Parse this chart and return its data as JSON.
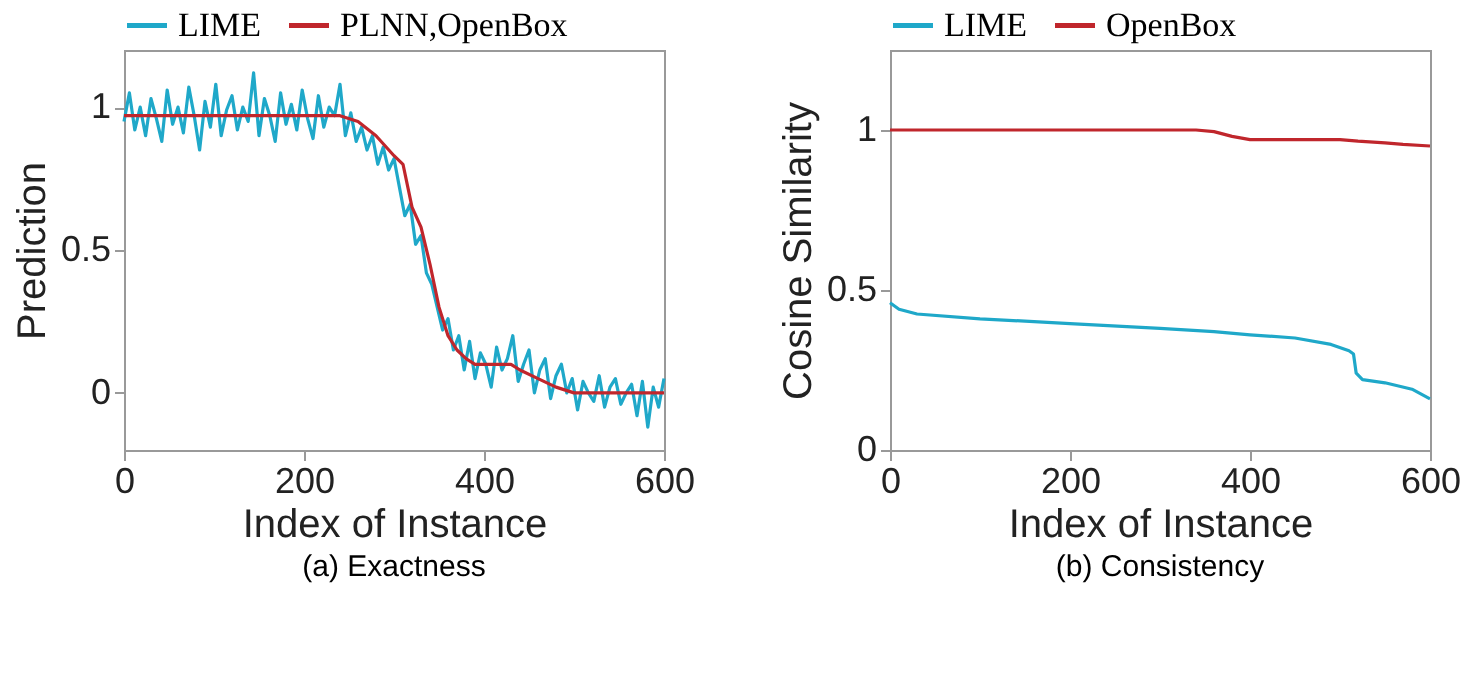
{
  "chart_data": [
    {
      "type": "line",
      "title": "(a) Exactness",
      "xlabel": "Index of Instance",
      "ylabel": "Prediction",
      "xlim": [
        0,
        600
      ],
      "xticks": [
        0,
        200,
        400,
        600
      ],
      "ylim": [
        -0.2,
        1.2
      ],
      "yticks": [
        0,
        0.5,
        1
      ],
      "grid": false,
      "legend": "top",
      "series": [
        {
          "name": "LIME",
          "color": "#1fa8c9",
          "x": [
            0,
            6,
            12,
            18,
            24,
            30,
            36,
            42,
            48,
            54,
            60,
            66,
            72,
            78,
            84,
            90,
            96,
            102,
            108,
            114,
            120,
            126,
            132,
            138,
            144,
            150,
            156,
            162,
            168,
            174,
            180,
            186,
            192,
            198,
            204,
            210,
            216,
            222,
            228,
            234,
            240,
            246,
            252,
            258,
            264,
            270,
            276,
            282,
            288,
            294,
            300,
            306,
            312,
            318,
            324,
            330,
            336,
            342,
            348,
            354,
            360,
            366,
            372,
            378,
            384,
            390,
            396,
            402,
            408,
            414,
            420,
            426,
            432,
            438,
            444,
            450,
            456,
            462,
            468,
            474,
            480,
            486,
            492,
            498,
            504,
            510,
            516,
            522,
            528,
            534,
            540,
            546,
            552,
            558,
            564,
            570,
            576,
            582,
            588,
            594,
            600
          ],
          "values": [
            0.95,
            1.05,
            0.92,
            1.0,
            0.9,
            1.03,
            0.96,
            0.88,
            1.06,
            0.94,
            1.0,
            0.91,
            1.07,
            0.97,
            0.85,
            1.02,
            0.93,
            1.08,
            0.9,
            0.99,
            1.04,
            0.92,
            1.0,
            0.95,
            1.12,
            0.9,
            1.03,
            0.97,
            0.88,
            1.05,
            0.94,
            1.01,
            0.92,
            1.06,
            0.96,
            0.89,
            1.04,
            0.93,
            1.0,
            0.97,
            1.08,
            0.9,
            0.98,
            0.88,
            0.93,
            0.85,
            0.9,
            0.8,
            0.86,
            0.78,
            0.82,
            0.72,
            0.62,
            0.66,
            0.52,
            0.55,
            0.42,
            0.38,
            0.3,
            0.22,
            0.26,
            0.15,
            0.2,
            0.08,
            0.18,
            0.05,
            0.14,
            0.1,
            0.02,
            0.16,
            0.08,
            0.12,
            0.2,
            0.04,
            0.1,
            0.15,
            0.0,
            0.08,
            0.12,
            -0.02,
            0.06,
            0.1,
            0.0,
            0.05,
            -0.06,
            0.04,
            0.0,
            -0.03,
            0.06,
            -0.05,
            0.02,
            0.05,
            -0.04,
            0.0,
            0.03,
            -0.08,
            0.04,
            -0.12,
            0.02,
            -0.05,
            0.05
          ]
        },
        {
          "name": "PLNN,OpenBox",
          "color": "#c0262c",
          "x": [
            0,
            240,
            260,
            280,
            300,
            310,
            320,
            330,
            340,
            350,
            360,
            370,
            380,
            390,
            430,
            440,
            460,
            480,
            500,
            600
          ],
          "values": [
            0.97,
            0.97,
            0.95,
            0.9,
            0.83,
            0.8,
            0.65,
            0.58,
            0.45,
            0.3,
            0.2,
            0.15,
            0.12,
            0.1,
            0.1,
            0.08,
            0.05,
            0.02,
            0,
            0
          ]
        }
      ]
    },
    {
      "type": "line",
      "title": "(b) Consistency",
      "xlabel": "Index of Instance",
      "ylabel": "Cosine Similarity",
      "xlim": [
        0,
        600
      ],
      "xticks": [
        0,
        200,
        400,
        600
      ],
      "ylim": [
        0,
        1.25
      ],
      "yticks": [
        0,
        0.5,
        1
      ],
      "grid": false,
      "legend": "top",
      "series": [
        {
          "name": "LIME",
          "color": "#1fa8c9",
          "x": [
            0,
            10,
            30,
            100,
            200,
            300,
            360,
            400,
            450,
            490,
            510,
            515,
            518,
            525,
            550,
            580,
            600
          ],
          "values": [
            0.46,
            0.44,
            0.425,
            0.41,
            0.395,
            0.38,
            0.37,
            0.36,
            0.35,
            0.33,
            0.31,
            0.3,
            0.24,
            0.22,
            0.21,
            0.19,
            0.16
          ]
        },
        {
          "name": "OpenBox",
          "color": "#c0262c",
          "x": [
            0,
            340,
            360,
            380,
            400,
            500,
            520,
            550,
            570,
            600
          ],
          "values": [
            1.0,
            1.0,
            0.995,
            0.98,
            0.97,
            0.97,
            0.965,
            0.96,
            0.955,
            0.95
          ]
        }
      ]
    }
  ]
}
